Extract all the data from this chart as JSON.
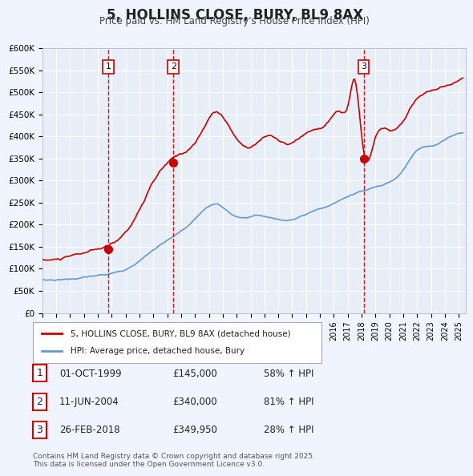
{
  "title": "5, HOLLINS CLOSE, BURY, BL9 8AX",
  "subtitle": "Price paid vs. HM Land Registry's House Price Index (HPI)",
  "background_color": "#f0f4ff",
  "plot_bg_color": "#e8eef8",
  "grid_color": "#ffffff",
  "red_line_color": "#cc0000",
  "blue_line_color": "#6699cc",
  "sale_marker_color": "#cc0000",
  "sale_dates": [
    1999.75,
    2004.44,
    2018.15
  ],
  "sale_prices": [
    145000,
    340000,
    349950
  ],
  "sale_labels": [
    "1",
    "2",
    "3"
  ],
  "vline_color": "#cc0000",
  "legend_label_red": "5, HOLLINS CLOSE, BURY, BL9 8AX (detached house)",
  "legend_label_blue": "HPI: Average price, detached house, Bury",
  "table_rows": [
    [
      "1",
      "01-OCT-1999",
      "£145,000",
      "58% ↑ HPI"
    ],
    [
      "2",
      "11-JUN-2004",
      "£340,000",
      "81% ↑ HPI"
    ],
    [
      "3",
      "26-FEB-2018",
      "£349,950",
      "28% ↑ HPI"
    ]
  ],
  "footnote": "Contains HM Land Registry data © Crown copyright and database right 2025.\nThis data is licensed under the Open Government Licence v3.0.",
  "ylim": [
    0,
    600000
  ],
  "xlim_start": 1995.0,
  "xlim_end": 2025.5,
  "ytick_values": [
    0,
    50000,
    100000,
    150000,
    200000,
    250000,
    300000,
    350000,
    400000,
    450000,
    500000,
    550000,
    600000
  ],
  "ytick_labels": [
    "£0",
    "£50K",
    "£100K",
    "£150K",
    "£200K",
    "£250K",
    "£300K",
    "£350K",
    "£400K",
    "£450K",
    "£500K",
    "£550K",
    "£600K"
  ]
}
